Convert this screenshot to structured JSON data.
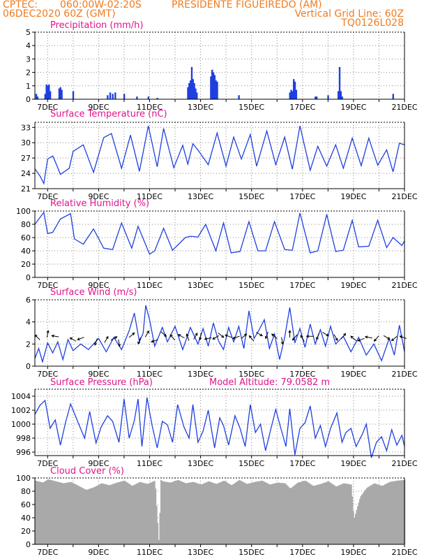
{
  "header": {
    "line1_left": "CPTEC:",
    "line1_coords": "060:00W-02:20S",
    "line1_station": "PRESIDENTE FIGUEIREDO (AM)",
    "line2_date": "06DEC2020 60Z (GMT)",
    "line2_grid": "Vertical Grid Line: 60Z",
    "line3_code": "TQ0126L028"
  },
  "colors": {
    "header": "#f07b1e",
    "title": "#e0148c",
    "series": "#1f3fe0",
    "cloud": "#a9a9a9",
    "arrow": "#000000",
    "grid": "#888888"
  },
  "x_axis": {
    "start_day": 6.5,
    "end_day": 21,
    "tick_labels": [
      "7DEC",
      "9DEC",
      "11DEC",
      "13DEC",
      "15DEC",
      "17DEC",
      "19DEC",
      "21DEC"
    ],
    "tick_days": [
      7,
      9,
      11,
      13,
      15,
      17,
      19,
      21
    ]
  },
  "chart_data": [
    {
      "id": "precip",
      "type": "bar",
      "title": "Precipitation (mm/h)",
      "ylim": [
        0,
        5
      ],
      "yticks": [
        "0",
        "1",
        "2",
        "3",
        "4",
        "5"
      ],
      "x": [
        6.55,
        6.6,
        6.9,
        6.95,
        7.0,
        7.05,
        7.1,
        7.45,
        7.5,
        7.55,
        8.0,
        9.35,
        9.45,
        9.55,
        9.65,
        10.0,
        10.5,
        10.95,
        11.3,
        12.5,
        12.55,
        12.6,
        12.65,
        12.7,
        12.75,
        12.8,
        12.85,
        13.4,
        13.45,
        13.5,
        13.55,
        13.6,
        13.65,
        14.5,
        16.5,
        16.55,
        16.6,
        16.65,
        16.7,
        16.75,
        17.5,
        17.55,
        18.0,
        18.4,
        18.45,
        18.5,
        18.55,
        20.55
      ],
      "values": [
        0.4,
        0.2,
        0.4,
        1.1,
        1.0,
        1.1,
        0.6,
        0.8,
        0.9,
        0.7,
        0.6,
        0.3,
        0.5,
        0.4,
        0.5,
        0.4,
        0.2,
        0.2,
        0.1,
        0.9,
        1.2,
        1.4,
        2.4,
        1.5,
        1.2,
        0.8,
        0.5,
        1.7,
        2.2,
        2.0,
        1.8,
        1.4,
        1.3,
        0.3,
        0.5,
        0.7,
        0.6,
        1.5,
        1.3,
        0.7,
        0.2,
        0.2,
        0.3,
        0.6,
        2.4,
        0.6,
        0.2,
        0.4
      ]
    },
    {
      "id": "temp",
      "type": "line",
      "title": "Surface Temperature (nC)",
      "ylim": [
        21,
        34
      ],
      "yticks": [
        "21",
        "24",
        "27",
        "30",
        "33"
      ],
      "x": [
        6.5,
        6.7,
        6.85,
        7.0,
        7.2,
        7.3,
        7.5,
        7.85,
        8.0,
        8.4,
        8.8,
        9.2,
        9.5,
        9.9,
        10.25,
        10.6,
        10.95,
        11.3,
        11.55,
        11.95,
        12.3,
        12.5,
        12.7,
        12.95,
        13.3,
        13.65,
        14.0,
        14.3,
        14.6,
        14.95,
        15.2,
        15.6,
        15.95,
        16.3,
        16.6,
        16.9,
        17.3,
        17.6,
        17.95,
        18.3,
        18.6,
        18.95,
        19.3,
        19.6,
        19.95,
        20.3,
        20.55,
        20.8,
        21.0
      ],
      "values": [
        24.9,
        23.5,
        22.0,
        26.8,
        27.4,
        26.3,
        23.8,
        25.0,
        28.3,
        29.6,
        24.2,
        31.0,
        31.8,
        25.0,
        31.5,
        24.4,
        33.3,
        25.3,
        32.8,
        25.1,
        29.5,
        25.8,
        29.8,
        28.2,
        25.7,
        31.9,
        25.4,
        31.1,
        26.8,
        31.6,
        25.4,
        32.3,
        25.7,
        31.1,
        24.8,
        33.3,
        24.6,
        29.3,
        25.4,
        29.6,
        25.0,
        30.9,
        25.5,
        30.9,
        25.6,
        28.6,
        24.3,
        29.9,
        29.6
      ]
    },
    {
      "id": "rh",
      "type": "line",
      "title": "Relative Humidity (%)",
      "ylim": [
        0,
        100
      ],
      "yticks": [
        "0",
        "20",
        "40",
        "60",
        "80",
        "100"
      ],
      "x": [
        6.5,
        6.85,
        7.0,
        7.2,
        7.5,
        7.9,
        8.05,
        8.4,
        8.8,
        9.2,
        9.55,
        9.9,
        10.3,
        10.55,
        11.0,
        11.2,
        11.55,
        11.9,
        12.4,
        12.6,
        12.9,
        13.2,
        13.6,
        13.9,
        14.2,
        14.55,
        14.9,
        15.25,
        15.55,
        15.9,
        16.3,
        16.6,
        16.9,
        17.3,
        17.6,
        17.95,
        18.3,
        18.6,
        18.95,
        19.2,
        19.6,
        19.95,
        20.3,
        20.55,
        20.9,
        21.0
      ],
      "values": [
        80,
        98,
        66,
        68,
        88,
        96,
        58,
        50,
        73,
        44,
        42,
        82,
        44,
        77,
        35,
        40,
        74,
        41,
        60,
        62,
        61,
        80,
        40,
        82,
        37,
        39,
        84,
        40,
        40,
        84,
        42,
        41,
        97,
        37,
        40,
        95,
        39,
        41,
        86,
        46,
        47,
        86,
        45,
        60,
        48,
        55
      ]
    },
    {
      "id": "wind",
      "type": "line",
      "title": "Surface Wind (m/s)",
      "ylim": [
        0,
        6
      ],
      "yticks": [
        "0",
        "2",
        "4",
        "6"
      ],
      "x": [
        6.5,
        6.65,
        6.8,
        7.0,
        7.2,
        7.4,
        7.6,
        7.8,
        8.0,
        8.3,
        8.6,
        9.0,
        9.3,
        9.6,
        9.9,
        10.2,
        10.4,
        10.6,
        10.75,
        10.85,
        11.0,
        11.2,
        11.5,
        11.7,
        12.0,
        12.3,
        12.6,
        12.9,
        13.1,
        13.3,
        13.5,
        13.7,
        13.9,
        14.1,
        14.3,
        14.5,
        14.7,
        14.9,
        15.1,
        15.3,
        15.5,
        15.7,
        15.9,
        16.1,
        16.3,
        16.5,
        16.7,
        16.9,
        17.1,
        17.3,
        17.5,
        17.7,
        17.9,
        18.1,
        18.3,
        18.6,
        18.9,
        19.2,
        19.5,
        19.8,
        20.1,
        20.4,
        20.6,
        20.8,
        21.0
      ],
      "values": [
        0.7,
        1.6,
        0.4,
        2.1,
        1.2,
        2.2,
        0.6,
        2.4,
        1.4,
        2.0,
        1.5,
        2.5,
        1.3,
        2.6,
        1.5,
        3.2,
        4.8,
        2.2,
        3.0,
        5.5,
        4.2,
        1.8,
        3.5,
        2.2,
        3.6,
        1.5,
        3.5,
        2.0,
        3.4,
        1.8,
        3.9,
        2.3,
        1.5,
        3.5,
        2.2,
        3.6,
        1.6,
        5.0,
        2.5,
        3.3,
        4.2,
        1.6,
        2.9,
        0.6,
        2.6,
        5.3,
        2.1,
        3.4,
        1.7,
        3.8,
        2.0,
        3.3,
        1.8,
        3.6,
        2.0,
        2.7,
        1.3,
        2.6,
        1.0,
        2.0,
        0.5,
        2.5,
        1.0,
        3.7,
        1.3
      ]
    },
    {
      "id": "wind_vectors",
      "type": "scatter",
      "x": [
        6.6,
        7.0,
        7.3,
        8.0,
        8.3,
        8.9,
        9.3,
        9.6,
        9.8,
        10.3,
        10.6,
        10.9,
        11.2,
        11.55,
        11.9,
        12.25,
        12.5,
        12.8,
        13.0,
        13.3,
        13.6,
        13.8,
        14.1,
        14.4,
        14.7,
        15.0,
        15.3,
        15.6,
        15.9,
        16.2,
        16.5,
        16.7,
        17.0,
        17.3,
        17.6,
        17.9,
        18.3,
        18.6,
        19.0,
        19.3,
        19.6,
        19.9,
        20.3,
        20.6,
        20.95
      ],
      "values": [
        2.6,
        2.9,
        2.7,
        2.4,
        2.5,
        2.2,
        2.4,
        2.5,
        2.1,
        2.8,
        2.3,
        2.9,
        2.3,
        2.9,
        2.6,
        2.7,
        2.6,
        2.7,
        2.7,
        2.5,
        2.6,
        2.8,
        2.7,
        2.6,
        2.7,
        2.5,
        2.9,
        2.8,
        2.7,
        2.3,
        2.9,
        2.6,
        2.5,
        2.7,
        2.7,
        2.9,
        2.6,
        2.7,
        2.5,
        2.4,
        2.6,
        2.5,
        2.6,
        2.5,
        2.6
      ],
      "dir_deg": [
        135,
        80,
        170,
        150,
        200,
        250,
        60,
        30,
        280,
        40,
        250,
        60,
        200,
        320,
        130,
        150,
        110,
        60,
        260,
        190,
        210,
        320,
        160,
        200,
        40,
        130,
        330,
        250,
        140,
        280,
        90,
        230,
        120,
        180,
        250,
        330,
        300,
        50,
        140,
        200,
        170,
        230,
        330,
        220,
        160
      ]
    },
    {
      "id": "pressure",
      "type": "line",
      "title": "Surface Pressure (hPa)",
      "annotation": "Model Altitude: 79.0582 m",
      "ylim": [
        995.5,
        1005
      ],
      "yticks": [
        "996",
        "998",
        "1000",
        "1002",
        "1004"
      ],
      "x": [
        6.5,
        6.7,
        6.9,
        7.1,
        7.3,
        7.5,
        7.7,
        7.9,
        8.0,
        8.2,
        8.45,
        8.65,
        8.9,
        9.1,
        9.35,
        9.55,
        9.8,
        10.0,
        10.2,
        10.4,
        10.55,
        10.7,
        10.9,
        11.1,
        11.3,
        11.5,
        11.7,
        11.9,
        12.1,
        12.35,
        12.55,
        12.7,
        12.9,
        13.1,
        13.3,
        13.55,
        13.75,
        13.9,
        14.1,
        14.35,
        14.55,
        14.75,
        14.95,
        15.15,
        15.35,
        15.55,
        15.75,
        15.95,
        16.15,
        16.35,
        16.5,
        16.7,
        16.9,
        17.1,
        17.3,
        17.5,
        17.7,
        17.9,
        18.1,
        18.35,
        18.55,
        18.7,
        18.9,
        19.1,
        19.35,
        19.5,
        19.7,
        19.9,
        20.1,
        20.3,
        20.5,
        20.7,
        20.9,
        21.0
      ],
      "values": [
        1001.4,
        1002.7,
        1003.4,
        999.4,
        1000.6,
        997.0,
        1000.2,
        1002.9,
        1002.0,
        1000.2,
        998.0,
        1001.8,
        997.3,
        999.6,
        1001.2,
        1000.4,
        997.4,
        1003.6,
        998.0,
        1000.5,
        1003.6,
        996.8,
        1003.8,
        999.8,
        996.6,
        1000.4,
        999.9,
        997.4,
        1002.8,
        999.6,
        998.0,
        1002.8,
        997.4,
        999.0,
        1002.0,
        996.6,
        1000.9,
        999.8,
        997.0,
        1001.2,
        999.4,
        996.8,
        1002.8,
        998.8,
        1000.0,
        996.2,
        999.2,
        1002.1,
        999.4,
        996.8,
        1002.2,
        995.6,
        999.4,
        1000.2,
        1002.6,
        998.0,
        999.8,
        996.8,
        999.4,
        1001.6,
        997.4,
        998.8,
        999.4,
        996.8,
        998.6,
        1000.0,
        995.2,
        997.4,
        998.2,
        996.2,
        999.2,
        997.0,
        998.4,
        996.8
      ]
    },
    {
      "id": "cloud",
      "type": "area",
      "title": "Cloud Cover (%)",
      "ylim": [
        0,
        100
      ],
      "yticks": [
        "0",
        "20",
        "40",
        "60",
        "80",
        "100"
      ],
      "x": [
        6.5,
        6.8,
        7.0,
        7.3,
        7.6,
        7.9,
        8.2,
        8.5,
        8.8,
        9.1,
        9.4,
        9.7,
        10.0,
        10.3,
        10.6,
        10.9,
        11.2,
        11.35,
        11.42,
        11.5,
        11.8,
        12.1,
        12.4,
        12.7,
        13.0,
        13.3,
        13.6,
        13.9,
        14.2,
        14.5,
        14.8,
        15.1,
        15.4,
        15.7,
        16.0,
        16.3,
        16.5,
        16.8,
        17.1,
        17.4,
        17.7,
        18.0,
        18.3,
        18.6,
        18.9,
        19.0,
        19.1,
        19.25,
        19.5,
        19.8,
        20.1,
        20.4,
        20.7,
        21.0
      ],
      "values": [
        96,
        93,
        98,
        95,
        92,
        94,
        88,
        82,
        86,
        92,
        89,
        93,
        96,
        88,
        94,
        91,
        96,
        2,
        97,
        95,
        93,
        97,
        92,
        94,
        90,
        95,
        91,
        96,
        89,
        97,
        91,
        94,
        96,
        90,
        93,
        92,
        84,
        93,
        96,
        88,
        91,
        95,
        87,
        92,
        90,
        38,
        52,
        72,
        85,
        92,
        88,
        94,
        96,
        97
      ]
    }
  ]
}
